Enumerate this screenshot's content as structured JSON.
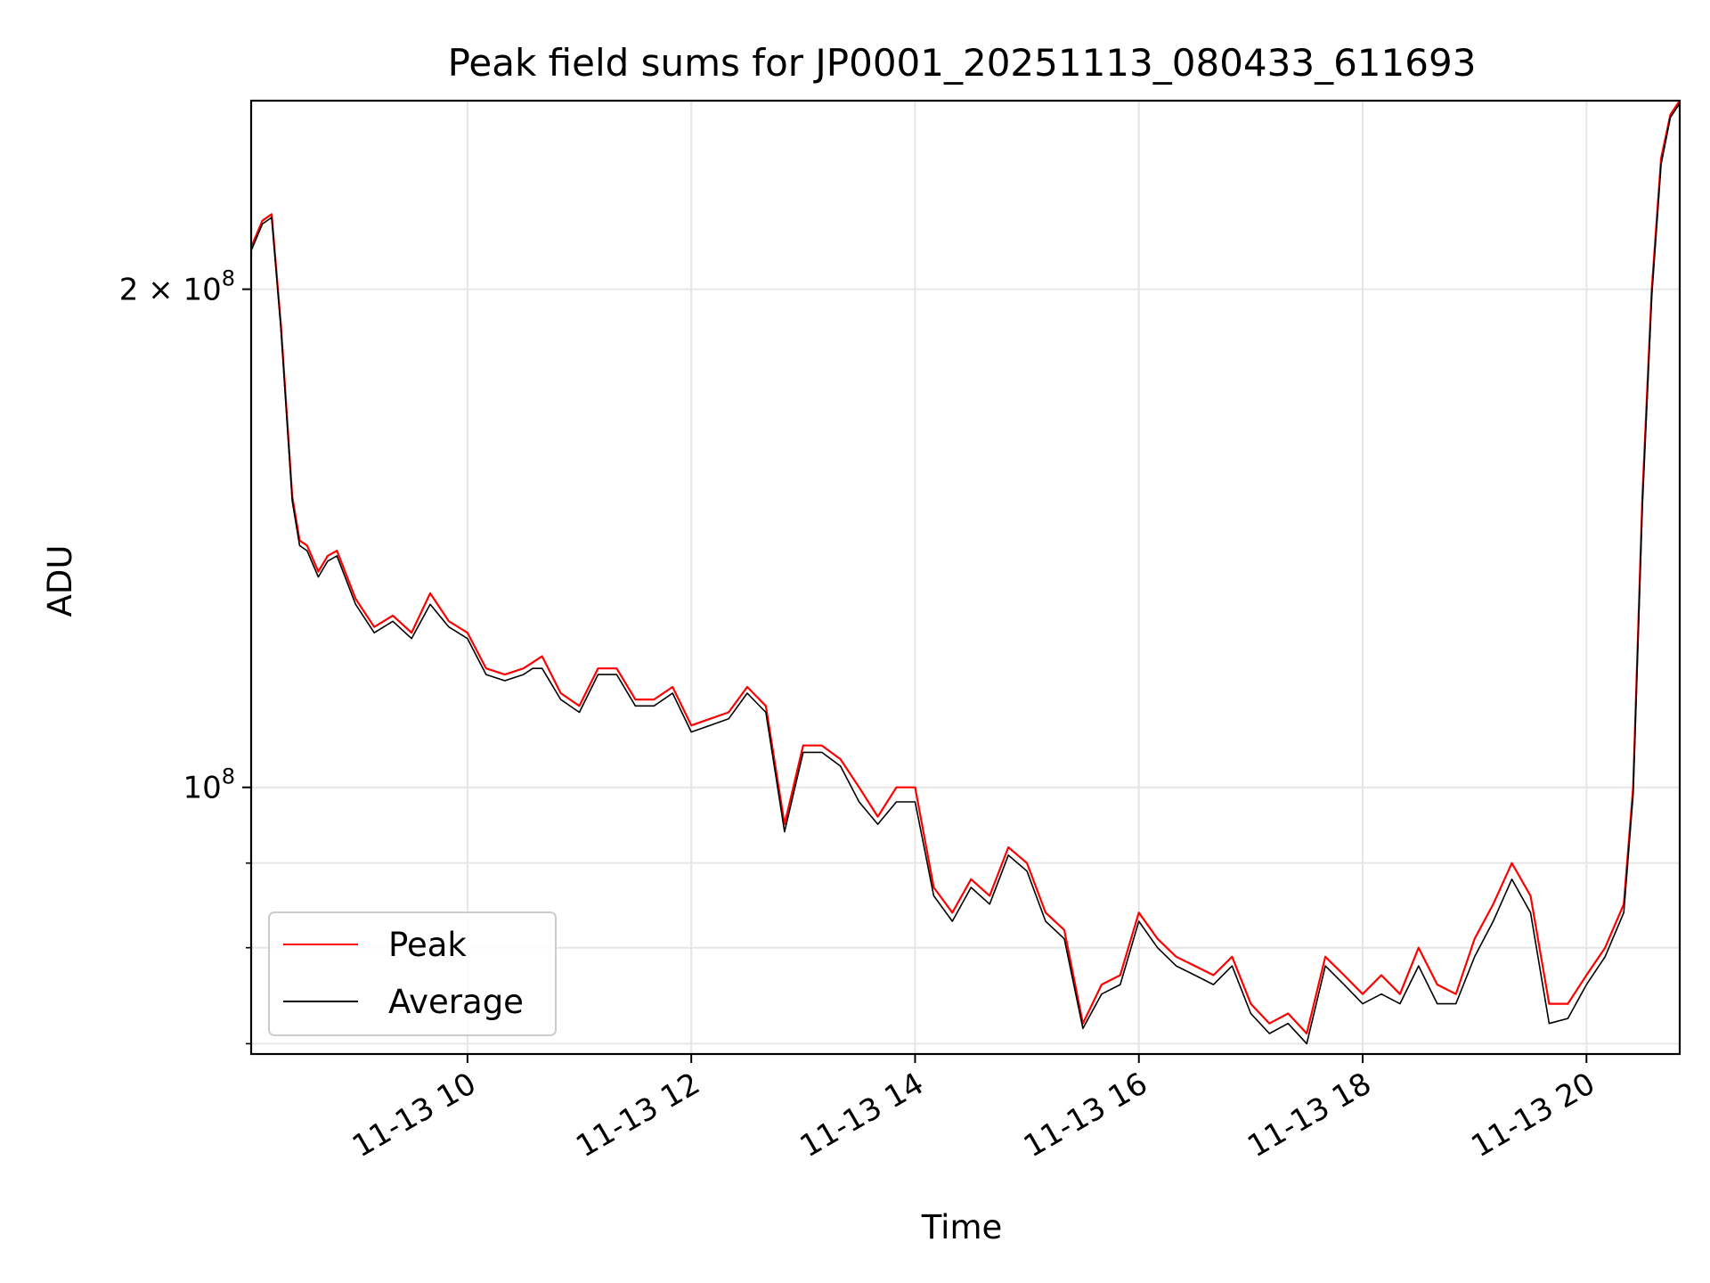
{
  "chart_data": {
    "type": "line",
    "title": "Peak field sums for JP0001_20251113_080433_611693",
    "xlabel": "Time",
    "ylabel": "ADU",
    "x_scale": "time",
    "y_scale": "log",
    "xlim": [
      "2025-11-13 08:04",
      "2025-11-13 20:50"
    ],
    "ylim": [
      69000000,
      260000000
    ],
    "x_ticks": [
      {
        "value": "2025-11-13 10:00",
        "label": "11-13 10"
      },
      {
        "value": "2025-11-13 12:00",
        "label": "11-13 12"
      },
      {
        "value": "2025-11-13 14:00",
        "label": "11-13 14"
      },
      {
        "value": "2025-11-13 16:00",
        "label": "11-13 16"
      },
      {
        "value": "2025-11-13 18:00",
        "label": "11-13 18"
      },
      {
        "value": "2025-11-13 20:00",
        "label": "11-13 20"
      }
    ],
    "y_major_ticks": [
      {
        "value": 100000000,
        "base": "10",
        "exp": "8",
        "mantissa": ""
      },
      {
        "value": 200000000,
        "base": "10",
        "exp": "8",
        "mantissa": "2 × "
      }
    ],
    "y_minor_ticks": [
      70000000,
      80000000,
      90000000
    ],
    "grid": true,
    "legend_position": "lower-left",
    "series": [
      {
        "name": "Peak",
        "color": "#ff0000",
        "x": [
          "2025-11-13 08:04",
          "2025-11-13 08:10",
          "2025-11-13 08:15",
          "2025-11-13 08:20",
          "2025-11-13 08:26",
          "2025-11-13 08:30",
          "2025-11-13 08:34",
          "2025-11-13 08:40",
          "2025-11-13 08:45",
          "2025-11-13 08:50",
          "2025-11-13 09:00",
          "2025-11-13 09:10",
          "2025-11-13 09:20",
          "2025-11-13 09:30",
          "2025-11-13 09:40",
          "2025-11-13 09:50",
          "2025-11-13 10:00",
          "2025-11-13 10:10",
          "2025-11-13 10:20",
          "2025-11-13 10:30",
          "2025-11-13 10:35",
          "2025-11-13 10:40",
          "2025-11-13 10:50",
          "2025-11-13 11:00",
          "2025-11-13 11:10",
          "2025-11-13 11:20",
          "2025-11-13 11:30",
          "2025-11-13 11:40",
          "2025-11-13 11:50",
          "2025-11-13 12:00",
          "2025-11-13 12:10",
          "2025-11-13 12:20",
          "2025-11-13 12:30",
          "2025-11-13 12:40",
          "2025-11-13 12:50",
          "2025-11-13 13:00",
          "2025-11-13 13:10",
          "2025-11-13 13:20",
          "2025-11-13 13:30",
          "2025-11-13 13:40",
          "2025-11-13 13:50",
          "2025-11-13 14:00",
          "2025-11-13 14:10",
          "2025-11-13 14:20",
          "2025-11-13 14:30",
          "2025-11-13 14:40",
          "2025-11-13 14:50",
          "2025-11-13 15:00",
          "2025-11-13 15:10",
          "2025-11-13 15:20",
          "2025-11-13 15:30",
          "2025-11-13 15:40",
          "2025-11-13 15:50",
          "2025-11-13 16:00",
          "2025-11-13 16:10",
          "2025-11-13 16:20",
          "2025-11-13 16:30",
          "2025-11-13 16:40",
          "2025-11-13 16:50",
          "2025-11-13 17:00",
          "2025-11-13 17:10",
          "2025-11-13 17:20",
          "2025-11-13 17:30",
          "2025-11-13 17:40",
          "2025-11-13 17:50",
          "2025-11-13 18:00",
          "2025-11-13 18:10",
          "2025-11-13 18:20",
          "2025-11-13 18:30",
          "2025-11-13 18:40",
          "2025-11-13 18:50",
          "2025-11-13 19:00",
          "2025-11-13 19:10",
          "2025-11-13 19:20",
          "2025-11-13 19:30",
          "2025-11-13 19:40",
          "2025-11-13 19:50",
          "2025-11-13 20:00",
          "2025-11-13 20:10",
          "2025-11-13 20:20",
          "2025-11-13 20:25",
          "2025-11-13 20:30",
          "2025-11-13 20:35",
          "2025-11-13 20:40",
          "2025-11-13 20:45",
          "2025-11-13 20:50"
        ],
        "y": [
          212000000,
          220000000,
          222000000,
          190000000,
          150000000,
          141000000,
          140000000,
          135000000,
          138000000,
          139000000,
          130000000,
          125000000,
          127000000,
          124000000,
          131000000,
          126000000,
          124000000,
          118000000,
          117000000,
          118000000,
          119000000,
          120000000,
          114000000,
          112000000,
          118000000,
          118000000,
          113000000,
          113000000,
          115000000,
          109000000,
          110000000,
          111000000,
          115000000,
          112000000,
          95000000,
          106000000,
          106000000,
          104000000,
          100000000,
          96000000,
          100000000,
          100000000,
          87000000,
          84000000,
          88000000,
          86000000,
          92000000,
          90000000,
          84000000,
          82000000,
          72000000,
          76000000,
          77000000,
          84000000,
          81000000,
          79000000,
          78000000,
          77000000,
          79000000,
          74000000,
          72000000,
          73000000,
          71000000,
          79000000,
          77000000,
          75000000,
          77000000,
          75000000,
          80000000,
          76000000,
          75000000,
          81000000,
          85000000,
          90000000,
          86000000,
          74000000,
          74000000,
          77000000,
          80000000,
          85000000,
          100000000,
          150000000,
          200000000,
          240000000,
          255000000,
          260000000
        ]
      },
      {
        "name": "Average",
        "color": "#000000",
        "x": [
          "2025-11-13 08:04",
          "2025-11-13 08:10",
          "2025-11-13 08:15",
          "2025-11-13 08:20",
          "2025-11-13 08:26",
          "2025-11-13 08:30",
          "2025-11-13 08:34",
          "2025-11-13 08:40",
          "2025-11-13 08:45",
          "2025-11-13 08:50",
          "2025-11-13 09:00",
          "2025-11-13 09:10",
          "2025-11-13 09:20",
          "2025-11-13 09:30",
          "2025-11-13 09:40",
          "2025-11-13 09:50",
          "2025-11-13 10:00",
          "2025-11-13 10:10",
          "2025-11-13 10:20",
          "2025-11-13 10:30",
          "2025-11-13 10:35",
          "2025-11-13 10:40",
          "2025-11-13 10:50",
          "2025-11-13 11:00",
          "2025-11-13 11:10",
          "2025-11-13 11:20",
          "2025-11-13 11:30",
          "2025-11-13 11:40",
          "2025-11-13 11:50",
          "2025-11-13 12:00",
          "2025-11-13 12:10",
          "2025-11-13 12:20",
          "2025-11-13 12:30",
          "2025-11-13 12:40",
          "2025-11-13 12:50",
          "2025-11-13 13:00",
          "2025-11-13 13:10",
          "2025-11-13 13:20",
          "2025-11-13 13:30",
          "2025-11-13 13:40",
          "2025-11-13 13:50",
          "2025-11-13 14:00",
          "2025-11-13 14:10",
          "2025-11-13 14:20",
          "2025-11-13 14:30",
          "2025-11-13 14:40",
          "2025-11-13 14:50",
          "2025-11-13 15:00",
          "2025-11-13 15:10",
          "2025-11-13 15:20",
          "2025-11-13 15:30",
          "2025-11-13 15:40",
          "2025-11-13 15:50",
          "2025-11-13 16:00",
          "2025-11-13 16:10",
          "2025-11-13 16:20",
          "2025-11-13 16:30",
          "2025-11-13 16:40",
          "2025-11-13 16:50",
          "2025-11-13 17:00",
          "2025-11-13 17:10",
          "2025-11-13 17:20",
          "2025-11-13 17:30",
          "2025-11-13 17:40",
          "2025-11-13 17:50",
          "2025-11-13 18:00",
          "2025-11-13 18:10",
          "2025-11-13 18:20",
          "2025-11-13 18:30",
          "2025-11-13 18:40",
          "2025-11-13 18:50",
          "2025-11-13 19:00",
          "2025-11-13 19:10",
          "2025-11-13 19:20",
          "2025-11-13 19:30",
          "2025-11-13 19:40",
          "2025-11-13 19:50",
          "2025-11-13 20:00",
          "2025-11-13 20:10",
          "2025-11-13 20:20",
          "2025-11-13 20:25",
          "2025-11-13 20:30",
          "2025-11-13 20:35",
          "2025-11-13 20:40",
          "2025-11-13 20:45",
          "2025-11-13 20:50"
        ],
        "y": [
          211000000,
          219000000,
          221000000,
          189000000,
          149000000,
          140000000,
          139000000,
          134000000,
          137000000,
          138000000,
          129000000,
          124000000,
          126000000,
          123000000,
          129000000,
          125000000,
          123000000,
          117000000,
          116000000,
          117000000,
          118000000,
          118000000,
          113000000,
          111000000,
          117000000,
          117000000,
          112000000,
          112000000,
          114000000,
          108000000,
          109000000,
          110000000,
          114000000,
          111000000,
          94000000,
          105000000,
          105000000,
          103000000,
          98000000,
          95000000,
          98000000,
          98000000,
          86000000,
          83000000,
          87000000,
          85000000,
          91000000,
          89000000,
          83000000,
          81000000,
          71500000,
          75000000,
          76000000,
          83000000,
          80000000,
          78000000,
          77000000,
          76000000,
          78000000,
          73000000,
          71000000,
          72000000,
          70000000,
          78000000,
          76000000,
          74000000,
          75000000,
          74000000,
          78000000,
          74000000,
          74000000,
          79000000,
          83000000,
          88000000,
          84000000,
          72000000,
          72500000,
          76000000,
          79000000,
          84000000,
          99000000,
          148000000,
          198000000,
          238000000,
          254000000,
          259000000
        ]
      }
    ]
  }
}
